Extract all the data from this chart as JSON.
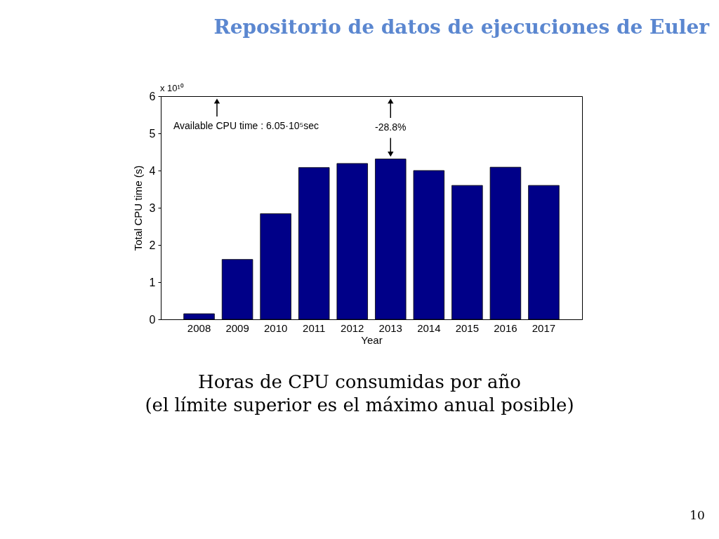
{
  "chart_data": {
    "type": "bar",
    "title": "Repositorio de datos de ejecuciones de Euler",
    "xlabel": "Year",
    "ylabel": "Total CPU time (s)",
    "categories": [
      "2008",
      "2009",
      "2010",
      "2011",
      "2012",
      "2013",
      "2014",
      "2015",
      "2016",
      "2017"
    ],
    "values": [
      0.15,
      1.61,
      2.84,
      4.08,
      4.19,
      4.31,
      4.0,
      3.6,
      4.09,
      3.6
    ],
    "color": "#000088",
    "ylim": [
      0,
      6
    ],
    "yticks": [
      0,
      1,
      2,
      3,
      4,
      5,
      6
    ],
    "grid": false,
    "annotations": [
      "x 10¹⁰",
      "Horas de CPU consumidas por año",
      "(el límite superior es el máximo anual posible)",
      "10",
      "Available CPU time : 6.05·10⁵sec",
      {
        "text": "-28.8%",
        "x": "2013",
        "y": 4.31
      }
    ]
  }
}
